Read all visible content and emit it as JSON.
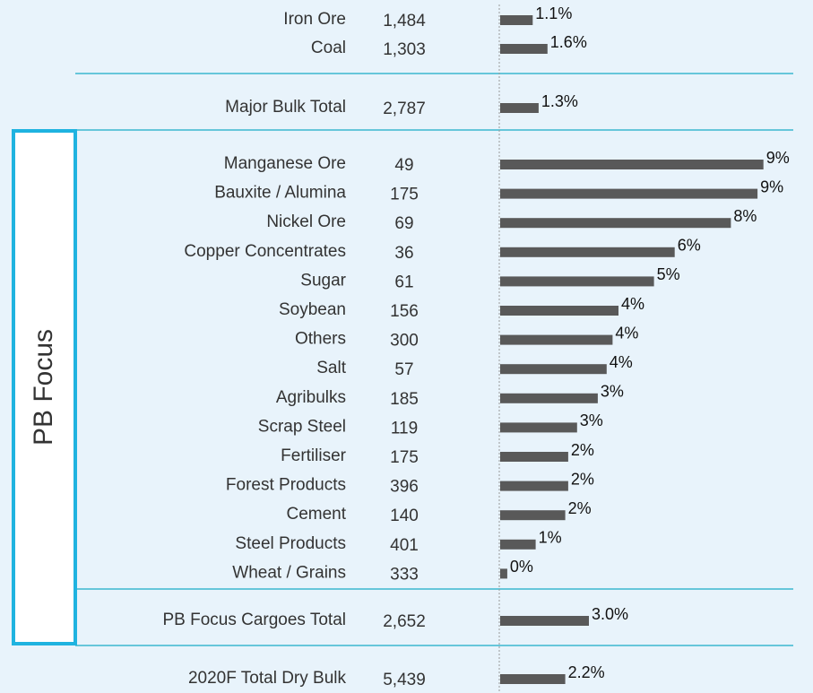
{
  "chart_data": {
    "type": "bar",
    "group_label": "PB Focus",
    "color": "#595959",
    "categories": [
      "Iron Ore",
      "Coal",
      "Major Bulk Total",
      "Manganese Ore",
      "Bauxite / Alumina",
      "Nickel Ore",
      "Copper Concentrates",
      "Sugar",
      "Soybean",
      "Others",
      "Salt",
      "Agribulks",
      "Scrap Steel",
      "Fertiliser",
      "Forest Products",
      "Cement",
      "Steel Products",
      "Wheat / Grains",
      "PB Focus Cargoes Total",
      "2020F Total Dry Bulk"
    ],
    "volumes": [
      "1,484",
      "1,303",
      "2,787",
      "49",
      "175",
      "69",
      "36",
      "61",
      "156",
      "300",
      "57",
      "185",
      "119",
      "175",
      "396",
      "140",
      "401",
      "333",
      "2,652",
      "5,439"
    ],
    "values": [
      1.1,
      1.6,
      1.3,
      8.9,
      8.7,
      7.8,
      5.9,
      5.2,
      4.0,
      3.8,
      3.6,
      3.3,
      2.6,
      2.3,
      2.3,
      2.2,
      1.2,
      0.24,
      3.0,
      2.2
    ],
    "value_labels": [
      "1.1%",
      "1.6%",
      "1.3%",
      "9%",
      "9%",
      "8%",
      "6%",
      "5%",
      "4%",
      "4%",
      "4%",
      "3%",
      "3%",
      "2%",
      "2%",
      "2%",
      "1%",
      "0%",
      "3.0%",
      "2.2%"
    ]
  }
}
